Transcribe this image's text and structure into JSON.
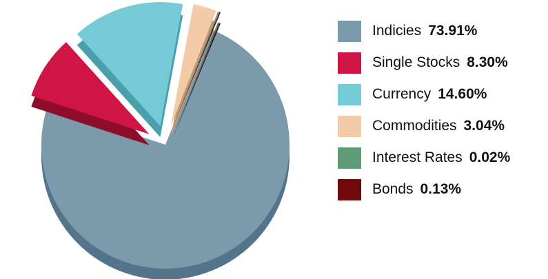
{
  "chart_data": {
    "type": "pie",
    "title": "",
    "style": "3d-exploded",
    "legend_position": "right",
    "slices": [
      {
        "label": "Indicies",
        "value_text": "73.91%",
        "value": 73.91,
        "color": "#7b9aab",
        "side_color": "#53748a",
        "exploded": false
      },
      {
        "label": "Single Stocks",
        "value_text": "8.30%",
        "value": 8.3,
        "color": "#d01444",
        "side_color": "#8e0d2c",
        "exploded": true
      },
      {
        "label": "Currency",
        "value_text": "14.60%",
        "value": 14.6,
        "color": "#74cbd6",
        "side_color": "#4a9fad",
        "exploded": true
      },
      {
        "label": "Commodities",
        "value_text": "3.04%",
        "value": 3.04,
        "color": "#f4cba8",
        "side_color": "#c79a76",
        "exploded": true
      },
      {
        "label": "Interest Rates",
        "value_text": "0.02%",
        "value": 0.02,
        "color": "#5f9b77",
        "side_color": "#3e6f52",
        "exploded": true
      },
      {
        "label": "Bonds",
        "value_text": "0.13%",
        "value": 0.13,
        "color": "#6e0a0a",
        "side_color": "#4a0606",
        "exploded": true
      }
    ]
  }
}
